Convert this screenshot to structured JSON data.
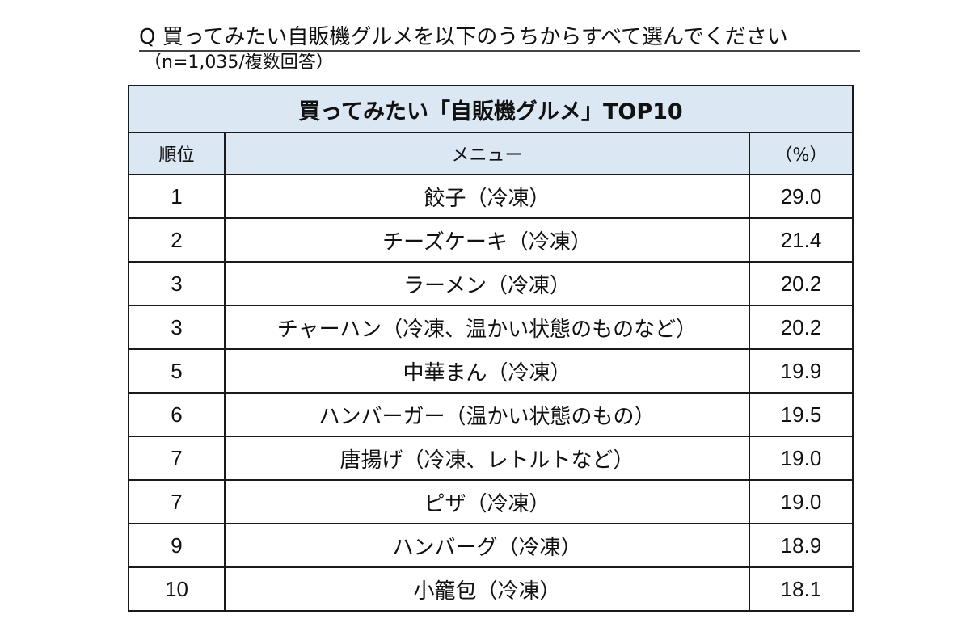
{
  "question": "Q 買ってみたい自販機グルメを以下のうちからすべて選んでください",
  "sample_note": "（n=1,035/複数回答）",
  "table": {
    "title": "買ってみたい「自販機グルメ」TOP10",
    "headers": {
      "rank": "順位",
      "menu": "メニュー",
      "percent": "（%）"
    },
    "rows": [
      {
        "rank": "1",
        "menu": "餃子（冷凍）",
        "percent": "29.0"
      },
      {
        "rank": "2",
        "menu": "チーズケーキ（冷凍）",
        "percent": "21.4"
      },
      {
        "rank": "3",
        "menu": "ラーメン（冷凍）",
        "percent": "20.2"
      },
      {
        "rank": "3",
        "menu": "チャーハン（冷凍、温かい状態のものなど）",
        "percent": "20.2"
      },
      {
        "rank": "5",
        "menu": "中華まん（冷凍）",
        "percent": "19.9"
      },
      {
        "rank": "6",
        "menu": "ハンバーガー（温かい状態のもの）",
        "percent": "19.5"
      },
      {
        "rank": "7",
        "menu": "唐揚げ（冷凍、レトルトなど）",
        "percent": "19.0"
      },
      {
        "rank": "7",
        "menu": "ピザ（冷凍）",
        "percent": "19.0"
      },
      {
        "rank": "9",
        "menu": "ハンバーグ（冷凍）",
        "percent": "18.9"
      },
      {
        "rank": "10",
        "menu": "小籠包（冷凍）",
        "percent": "18.1"
      }
    ]
  }
}
